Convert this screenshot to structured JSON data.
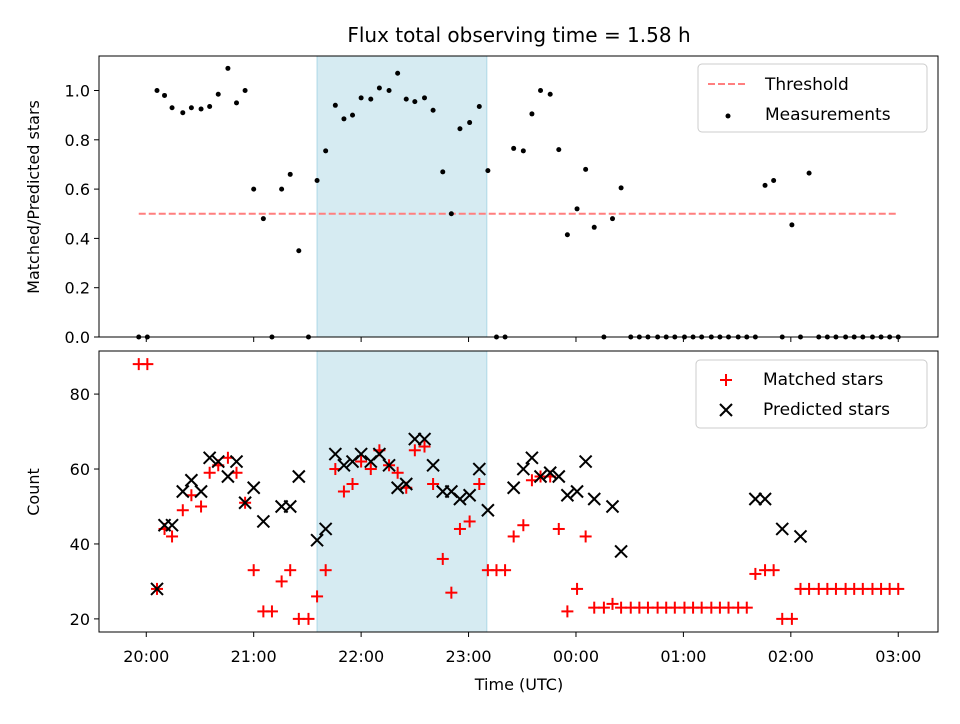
{
  "chart_data": {
    "title": "Flux total observing time = 1.58 h",
    "xlabel": "Time (UTC)",
    "x_unit": "hours since 20:00 UTC",
    "x_ticks": [
      {
        "value": 0,
        "label": "20:00"
      },
      {
        "value": 1,
        "label": "21:00"
      },
      {
        "value": 2,
        "label": "22:00"
      },
      {
        "value": 3,
        "label": "23:00"
      },
      {
        "value": 4,
        "label": "00:00"
      },
      {
        "value": 5,
        "label": "01:00"
      },
      {
        "value": 6,
        "label": "02:00"
      },
      {
        "value": 7,
        "label": "03:00"
      }
    ],
    "xlim": [
      -0.44,
      7.37
    ],
    "shaded_region": {
      "x_start": 1.59,
      "x_end": 3.17,
      "color": "#add8e6"
    },
    "panels": [
      {
        "type": "scatter",
        "ylabel": "Matched/Predicted stars",
        "ylim": [
          0,
          1.14
        ],
        "yticks": [
          "0.0",
          "0.2",
          "0.4",
          "0.6",
          "0.8",
          "1.0"
        ],
        "ytick_values": [
          0,
          0.2,
          0.4,
          0.6,
          0.8,
          1.0
        ],
        "legend_position": "top-right",
        "threshold": {
          "name": "Threshold",
          "y": 0.5,
          "x_range": [
            -0.07,
            6.98
          ],
          "color": "#ff7f7f"
        },
        "series": [
          {
            "name": "Measurements",
            "color": "#000000",
            "x": [
              -0.07,
              0.01,
              0.1,
              0.17,
              0.24,
              0.34,
              0.42,
              0.51,
              0.59,
              0.67,
              0.76,
              0.84,
              0.92,
              1.0,
              1.09,
              1.17,
              1.26,
              1.34,
              1.42,
              1.51,
              1.59,
              1.67,
              1.76,
              1.84,
              1.92,
              2.0,
              2.09,
              2.17,
              2.26,
              2.34,
              2.42,
              2.5,
              2.59,
              2.67,
              2.76,
              2.84,
              2.92,
              3.01,
              3.1,
              3.18,
              3.26,
              3.34,
              3.42,
              3.51,
              3.59,
              3.67,
              3.76,
              3.84,
              3.92,
              4.01,
              4.09,
              4.17,
              4.26,
              4.34,
              4.42,
              4.51,
              4.59,
              4.67,
              4.76,
              4.84,
              4.92,
              5.01,
              5.09,
              5.17,
              5.26,
              5.34,
              5.42,
              5.51,
              5.59,
              5.67,
              5.76,
              5.84,
              5.92,
              6.01,
              6.09,
              6.17,
              6.26,
              6.34,
              6.42,
              6.51,
              6.59,
              6.67,
              6.76,
              6.84,
              6.92,
              7.0
            ],
            "y": [
              0,
              0,
              1.0,
              0.98,
              0.93,
              0.91,
              0.93,
              0.925,
              0.935,
              0.985,
              1.09,
              0.95,
              1.0,
              0.6,
              0.48,
              0,
              0.6,
              0.66,
              0.35,
              0,
              0.635,
              0.755,
              0.94,
              0.885,
              0.9,
              0.97,
              0.965,
              1.01,
              1.0,
              1.07,
              0.965,
              0.955,
              0.97,
              0.92,
              0.67,
              0.5,
              0.845,
              0.87,
              0.935,
              0.675,
              0,
              0,
              0.765,
              0.755,
              0.905,
              1.0,
              0.985,
              0.76,
              0.415,
              0.52,
              0.68,
              0.445,
              0,
              0.48,
              0.605,
              0,
              0,
              0,
              0,
              0,
              0,
              0,
              0,
              0,
              0,
              0,
              0,
              0,
              0,
              0,
              0.615,
              0.635,
              0,
              0.455,
              0,
              0.665,
              0,
              0,
              0,
              0,
              0,
              0,
              0,
              0,
              0,
              0
            ]
          }
        ]
      },
      {
        "type": "scatter",
        "ylabel": "Count",
        "ylim": [
          16.5,
          91.5
        ],
        "yticks": [
          "20",
          "40",
          "60",
          "80"
        ],
        "ytick_values": [
          20,
          40,
          60,
          80
        ],
        "legend_position": "top-right",
        "series": [
          {
            "name": "Matched stars",
            "marker": "+",
            "color": "#ff0000",
            "x": [
              -0.07,
              0.01,
              0.1,
              0.17,
              0.24,
              0.34,
              0.42,
              0.51,
              0.59,
              0.67,
              0.76,
              0.84,
              0.92,
              1.0,
              1.09,
              1.17,
              1.26,
              1.34,
              1.42,
              1.51,
              1.59,
              1.67,
              1.76,
              1.84,
              1.92,
              2.0,
              2.09,
              2.17,
              2.26,
              2.34,
              2.42,
              2.5,
              2.59,
              2.67,
              2.76,
              2.84,
              2.92,
              3.01,
              3.1,
              3.18,
              3.26,
              3.34,
              3.42,
              3.51,
              3.59,
              3.67,
              3.76,
              3.84,
              3.92,
              4.01,
              4.09,
              4.17,
              4.26,
              4.34,
              4.42,
              4.51,
              4.59,
              4.67,
              4.76,
              4.84,
              4.92,
              5.01,
              5.09,
              5.17,
              5.26,
              5.34,
              5.42,
              5.51,
              5.59,
              5.67,
              5.76,
              5.84,
              5.92,
              6.01,
              6.09,
              6.17,
              6.26,
              6.34,
              6.42,
              6.51,
              6.59,
              6.67,
              6.76,
              6.84,
              6.92,
              7.0
            ],
            "y": [
              88,
              88,
              28,
              44,
              42,
              49,
              53,
              50,
              59,
              61,
              63,
              59,
              51,
              33,
              22,
              22,
              30,
              33,
              20,
              20,
              26,
              33,
              60,
              54,
              56,
              62,
              60,
              65,
              61,
              59,
              55,
              65,
              66,
              56,
              36,
              27,
              44,
              46,
              56,
              33,
              33,
              33,
              42,
              45,
              57,
              58,
              58,
              44,
              22,
              28,
              42,
              23,
              23,
              24,
              23,
              23,
              23,
              23,
              23,
              23,
              23,
              23,
              23,
              23,
              23,
              23,
              23,
              23,
              23,
              32,
              33,
              33,
              20,
              20,
              28,
              28,
              28,
              28,
              28,
              28,
              28,
              28,
              28,
              28,
              28,
              28
            ]
          },
          {
            "name": "Predicted stars",
            "marker": "x",
            "color": "#000000",
            "x": [
              0.1,
              0.17,
              0.24,
              0.34,
              0.42,
              0.51,
              0.59,
              0.67,
              0.76,
              0.84,
              0.92,
              1.0,
              1.09,
              1.26,
              1.34,
              1.42,
              1.59,
              1.67,
              1.76,
              1.84,
              1.92,
              2.0,
              2.09,
              2.17,
              2.26,
              2.34,
              2.42,
              2.5,
              2.59,
              2.67,
              2.76,
              2.84,
              2.92,
              3.01,
              3.1,
              3.18,
              3.42,
              3.51,
              3.59,
              3.67,
              3.76,
              3.84,
              3.92,
              4.01,
              4.09,
              4.17,
              4.34,
              4.42,
              5.67,
              5.76,
              5.92,
              6.09
            ],
            "y": [
              28,
              45,
              45,
              54,
              57,
              54,
              63,
              62,
              58,
              62,
              51,
              55,
              46,
              50,
              50,
              58,
              41,
              44,
              64,
              61,
              62,
              64,
              62,
              64,
              61,
              55,
              56,
              68,
              68,
              61,
              54,
              54,
              52,
              53,
              60,
              49,
              55,
              60,
              63,
              58,
              59,
              58,
              53,
              54,
              62,
              52,
              50,
              38,
              52,
              52,
              44,
              42
            ]
          }
        ]
      }
    ]
  }
}
